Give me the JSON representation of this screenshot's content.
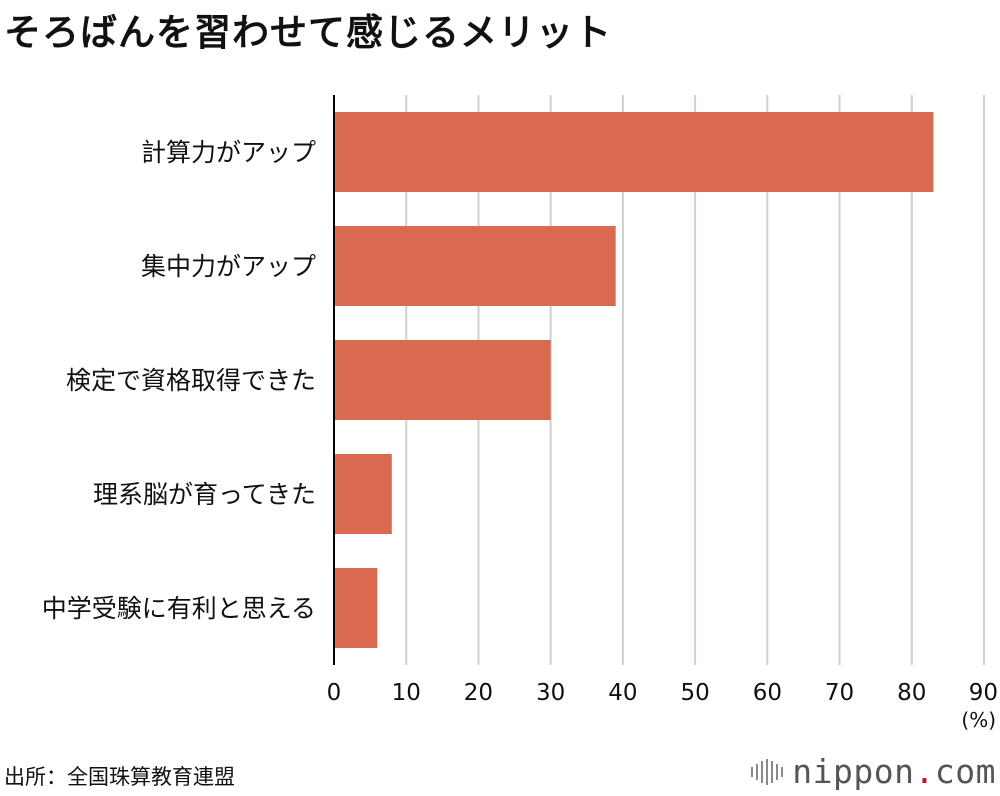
{
  "header": {
    "title": "そろばんを習わせて感じるメリット"
  },
  "chart_data": {
    "type": "bar",
    "orientation": "horizontal",
    "categories": [
      "計算力がアップ",
      "集中力がアップ",
      "検定で資格取得できた",
      "理系脳が育ってきた",
      "中学受験に有利と思える"
    ],
    "values": [
      83,
      39,
      30,
      8,
      6
    ],
    "xlim": [
      0,
      90
    ],
    "xticks": [
      "0",
      "10",
      "20",
      "30",
      "40",
      "50",
      "60",
      "70",
      "80",
      "90"
    ],
    "unit": "(%)",
    "grid": true,
    "bar_color": "#d9694f"
  },
  "footer": {
    "source": "出所：全国珠算教育連盟",
    "brand_name": "nippon",
    "brand_dot": ".",
    "brand_tld": "com"
  }
}
